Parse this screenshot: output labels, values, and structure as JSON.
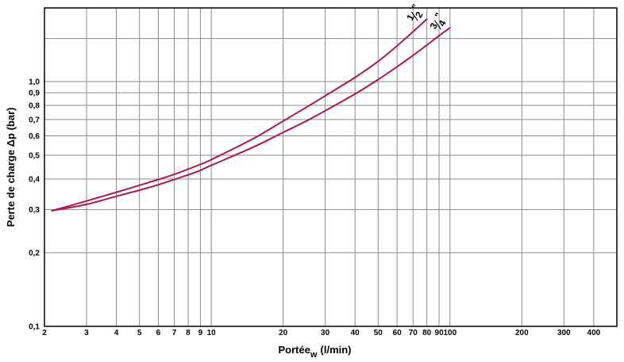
{
  "chart_data": {
    "type": "line",
    "xscale": "log",
    "yscale": "log",
    "grid": true,
    "xlabel": "Portée",
    "xlabel_sub": "w",
    "xlabel_unit": "(l/min)",
    "ylabel": "Perte de charge Δp (bar)",
    "xlim": [
      2,
      500
    ],
    "ylim": [
      0.1,
      2.0
    ],
    "x_ticks": [
      {
        "v": 2,
        "label": "2"
      },
      {
        "v": 3,
        "label": "3"
      },
      {
        "v": 4,
        "label": "4"
      },
      {
        "v": 5,
        "label": "5"
      },
      {
        "v": 6,
        "label": "6"
      },
      {
        "v": 7,
        "label": "7"
      },
      {
        "v": 8,
        "label": "8"
      },
      {
        "v": 9,
        "label": "9"
      },
      {
        "v": 10,
        "label": "10"
      },
      {
        "v": 20,
        "label": "20"
      },
      {
        "v": 30,
        "label": "30"
      },
      {
        "v": 40,
        "label": "40"
      },
      {
        "v": 50,
        "label": "50"
      },
      {
        "v": 60,
        "label": "60"
      },
      {
        "v": 70,
        "label": "70"
      },
      {
        "v": 80,
        "label": "80"
      },
      {
        "v": 90,
        "label": "90"
      },
      {
        "v": 100,
        "label": "100"
      },
      {
        "v": 200,
        "label": "200"
      },
      {
        "v": 300,
        "label": "300"
      },
      {
        "v": 400,
        "label": "400"
      }
    ],
    "y_ticks": [
      {
        "v": 0.1,
        "label": "0,1"
      },
      {
        "v": 0.2,
        "label": "0,2"
      },
      {
        "v": 0.3,
        "label": "0,3"
      },
      {
        "v": 0.4,
        "label": "0,4"
      },
      {
        "v": 0.5,
        "label": "0,5"
      },
      {
        "v": 0.6,
        "label": "0,6"
      },
      {
        "v": 0.7,
        "label": "0,7"
      },
      {
        "v": 0.8,
        "label": "0,8"
      },
      {
        "v": 0.9,
        "label": "0,9"
      },
      {
        "v": 1.0,
        "label": "1,0"
      }
    ],
    "y_extra_gridlines": [
      1.5
    ],
    "series": [
      {
        "name": "1/2\"",
        "label_num": "1",
        "label_den": "2",
        "label_mark": "\"",
        "color": "#b0174f",
        "x": [
          2.15,
          3,
          4,
          5,
          6,
          7,
          8,
          9,
          10,
          15,
          20,
          25,
          30,
          40,
          50,
          60,
          70,
          80
        ],
        "y": [
          0.297,
          0.325,
          0.353,
          0.377,
          0.398,
          0.418,
          0.439,
          0.459,
          0.48,
          0.585,
          0.69,
          0.785,
          0.875,
          1.04,
          1.21,
          1.4,
          1.6,
          1.8
        ]
      },
      {
        "name": "3/4\"",
        "label_num": "3",
        "label_den": "4",
        "label_mark": "\"",
        "color": "#b0174f",
        "x": [
          2.15,
          3,
          4,
          5,
          6,
          7,
          8,
          9,
          10,
          15,
          20,
          25,
          30,
          40,
          50,
          60,
          70,
          80,
          90,
          100
        ],
        "y": [
          0.297,
          0.315,
          0.34,
          0.36,
          0.379,
          0.398,
          0.416,
          0.434,
          0.455,
          0.54,
          0.62,
          0.69,
          0.76,
          0.89,
          1.02,
          1.15,
          1.28,
          1.41,
          1.54,
          1.66
        ]
      }
    ]
  }
}
